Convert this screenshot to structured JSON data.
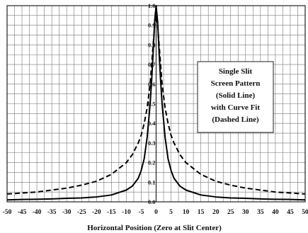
{
  "chart_data": {
    "type": "line",
    "xlabel": "Horizontal Position (Zero at Slit Center)",
    "ylabel": "",
    "xlim": [
      -50,
      50
    ],
    "ylim": [
      0,
      1.0
    ],
    "x_ticks": [
      -50,
      -45,
      -40,
      -35,
      -30,
      -25,
      -20,
      -15,
      -10,
      -5,
      0,
      5,
      10,
      15,
      20,
      25,
      30,
      35,
      40,
      45,
      50
    ],
    "y_ticks": [
      0.0,
      0.1,
      0.2,
      0.3,
      0.4,
      0.5,
      0.6,
      0.7,
      0.8,
      0.9,
      1.0
    ],
    "y_tick_labels": [
      "0.0",
      "0.1",
      "0.2",
      "0.3",
      "0.4",
      "0.5",
      "0.6",
      "0.7",
      "0.8",
      "0.9",
      "1.0"
    ],
    "grid": true,
    "annotation": [
      "Single Slit",
      "Screen Pattern",
      "(Solid Line)",
      "with Curve Fit",
      "(Dashed Line)"
    ],
    "series": [
      {
        "style": "solid",
        "x": [
          -50,
          -45,
          -40,
          -35,
          -30,
          -25,
          -20,
          -15,
          -10,
          -8,
          -6,
          -5,
          -4,
          -3,
          -2,
          -1.5,
          -1,
          -0.5,
          0,
          0.5,
          1,
          1.5,
          2,
          3,
          4,
          5,
          6,
          8,
          10,
          15,
          20,
          25,
          30,
          35,
          40,
          45,
          50
        ],
        "y": [
          0.01,
          0.012,
          0.013,
          0.015,
          0.018,
          0.02,
          0.025,
          0.035,
          0.06,
          0.08,
          0.12,
          0.16,
          0.22,
          0.33,
          0.5,
          0.62,
          0.76,
          0.92,
          1.0,
          0.92,
          0.76,
          0.62,
          0.5,
          0.33,
          0.22,
          0.16,
          0.12,
          0.08,
          0.06,
          0.035,
          0.025,
          0.02,
          0.018,
          0.015,
          0.013,
          0.012,
          0.01
        ]
      },
      {
        "style": "dashed",
        "x": [
          -50,
          -45,
          -40,
          -35,
          -30,
          -25,
          -20,
          -15,
          -10,
          -8,
          -6,
          -5,
          -4,
          -3,
          -2,
          -1,
          -0.5,
          0,
          0.5,
          1,
          2,
          3,
          4,
          5,
          6,
          8,
          10,
          15,
          20,
          25,
          30,
          35,
          40,
          45,
          50
        ],
        "y": [
          0.04,
          0.045,
          0.05,
          0.06,
          0.07,
          0.085,
          0.105,
          0.14,
          0.2,
          0.24,
          0.3,
          0.34,
          0.4,
          0.48,
          0.6,
          0.8,
          0.9,
          0.97,
          0.9,
          0.8,
          0.6,
          0.48,
          0.4,
          0.34,
          0.3,
          0.24,
          0.2,
          0.14,
          0.105,
          0.085,
          0.07,
          0.06,
          0.05,
          0.045,
          0.04
        ]
      }
    ]
  }
}
